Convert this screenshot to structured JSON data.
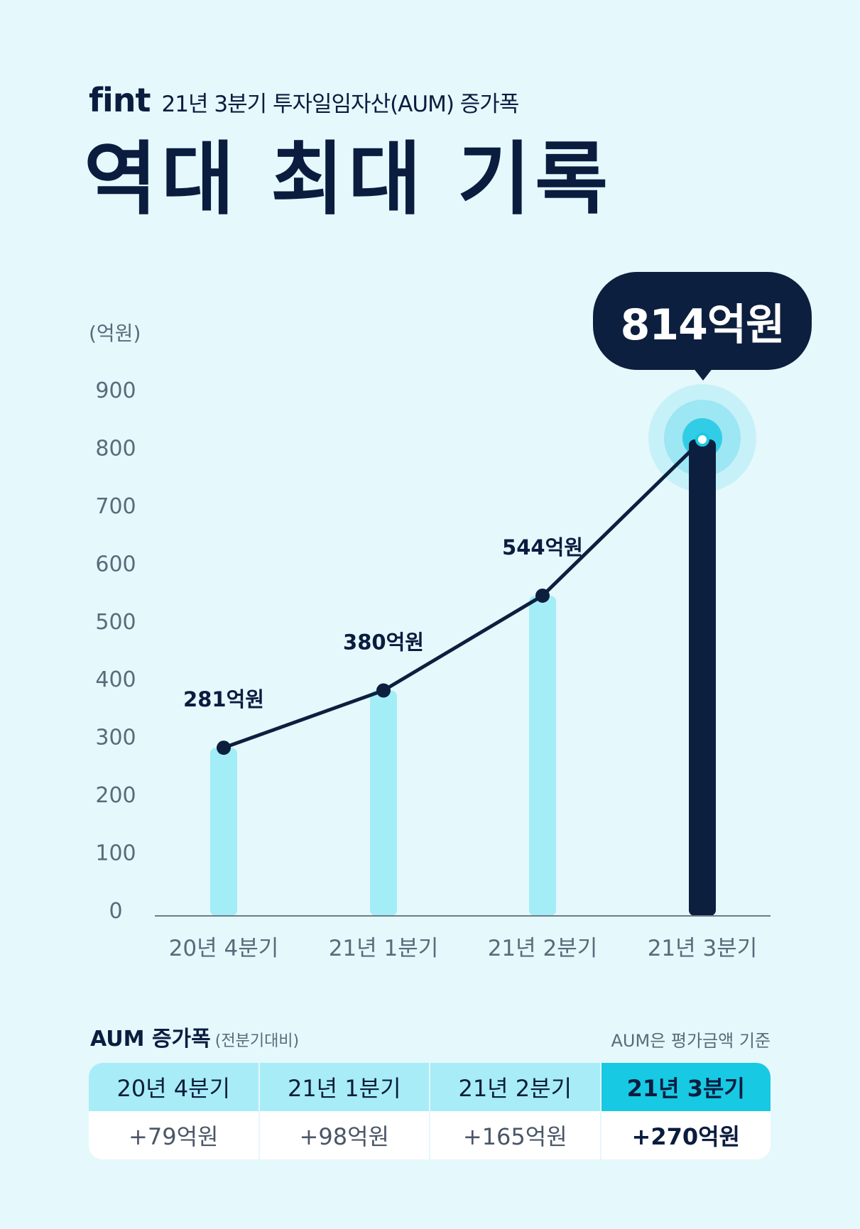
{
  "header": {
    "logo_text": "fint",
    "subtitle": "21년 3분기 투자일임자산(AUM) 증가폭"
  },
  "title": "역대 최대 기록",
  "chart_data": {
    "type": "bar",
    "categories": [
      "20년 4분기",
      "21년 1분기",
      "21년 2분기",
      "21년 3분기"
    ],
    "values": [
      281,
      380,
      544,
      814
    ],
    "data_labels": [
      "281억원",
      "380억원",
      "544억원",
      "814억원"
    ],
    "unit_label": "(억원)",
    "yticks": [
      0,
      100,
      200,
      300,
      400,
      500,
      600,
      700,
      800,
      900
    ],
    "ylim": [
      0,
      900
    ],
    "highlight_index": 3,
    "overlay_line": true,
    "grid": false,
    "colors": {
      "bar": "#a3edf7",
      "bar_highlight": "#0d1f3f",
      "line": "#0d1f3f",
      "glow": "#1ec8e3"
    }
  },
  "table": {
    "title": "AUM 증가폭",
    "title_sub": "(전분기대비)",
    "note": "AUM은 평가금액 기준",
    "columns": [
      {
        "header": "20년 4분기",
        "value": "+79억원"
      },
      {
        "header": "21년 1분기",
        "value": "+98억원"
      },
      {
        "header": "21년 2분기",
        "value": "+165억원"
      },
      {
        "header": "21년 3분기",
        "value": "+270억원"
      }
    ],
    "highlight_index": 3
  }
}
